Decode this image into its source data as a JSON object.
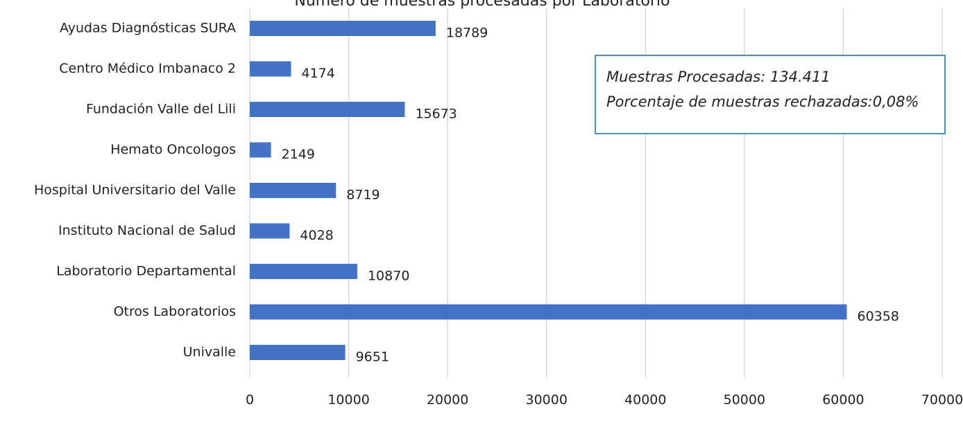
{
  "chart_data": {
    "type": "bar",
    "orientation": "horizontal",
    "title": "Número de muestras procesadas por Laboratorio",
    "categories": [
      "Ayudas Diagnósticas SURA",
      "Centro Médico Imbanaco 2",
      "Fundación Valle del Lili",
      "Hemato Oncologos",
      "Hospital Universitario del Valle",
      "Instituto Nacional de Salud",
      "Laboratorio Departamental",
      "Otros Laboratorios",
      "Univalle"
    ],
    "values": [
      18789,
      4174,
      15673,
      2149,
      8719,
      4028,
      10870,
      60358,
      9651
    ],
    "color": "#4472c4",
    "xlim": [
      0,
      70000
    ],
    "xticks": [
      0,
      10000,
      20000,
      30000,
      40000,
      50000,
      60000,
      70000
    ],
    "grid": true,
    "annotation": [
      "Muestras Procesadas: 134.411",
      "Porcentaje de muestras rechazadas:0,08%"
    ]
  }
}
